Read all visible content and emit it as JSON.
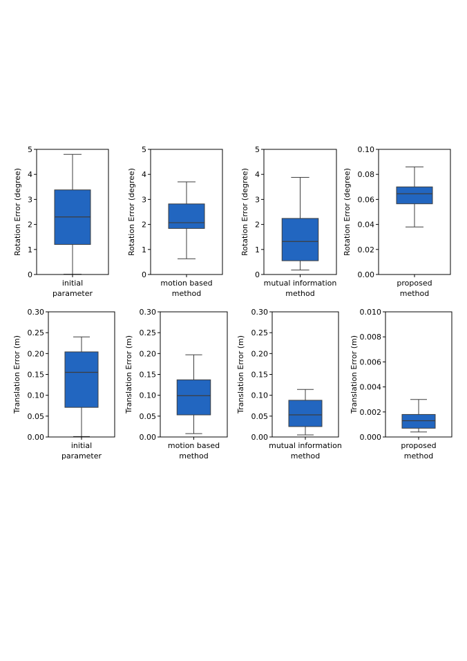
{
  "chart_data": [
    {
      "type": "box",
      "ylabel": "Rotation Error (degree)",
      "category_lines": [
        "initial",
        "parameter"
      ],
      "ylim": [
        0,
        5
      ],
      "yticks": [
        "0",
        "1",
        "2",
        "3",
        "4",
        "5"
      ],
      "box": {
        "whisker_low": 0.01,
        "q1": 1.2,
        "median": 2.3,
        "q3": 3.38,
        "whisker_high": 4.8
      },
      "color": "#2266c0"
    },
    {
      "type": "box",
      "ylabel": "Rotation Error (degree)",
      "category_lines": [
        "motion based",
        "method"
      ],
      "ylim": [
        0,
        5
      ],
      "yticks": [
        "0",
        "1",
        "2",
        "3",
        "4",
        "5"
      ],
      "box": {
        "whisker_low": 0.63,
        "q1": 1.84,
        "median": 2.07,
        "q3": 2.82,
        "whisker_high": 3.7
      },
      "color": "#2266c0"
    },
    {
      "type": "box",
      "ylabel": "Rotation Error (degree)",
      "category_lines": [
        "mutual information",
        "method"
      ],
      "ylim": [
        0,
        5
      ],
      "yticks": [
        "0",
        "1",
        "2",
        "3",
        "4",
        "5"
      ],
      "box": {
        "whisker_low": 0.18,
        "q1": 0.55,
        "median": 1.32,
        "q3": 2.24,
        "whisker_high": 3.88
      },
      "color": "#2266c0"
    },
    {
      "type": "box",
      "ylabel": "Rotation Error (degree)",
      "category_lines": [
        "proposed",
        "method"
      ],
      "ylim": [
        0,
        0.1
      ],
      "yticks": [
        "0.00",
        "0.02",
        "0.04",
        "0.06",
        "0.08",
        "0.10"
      ],
      "box": {
        "whisker_low": 0.038,
        "q1": 0.0565,
        "median": 0.0645,
        "q3": 0.07,
        "whisker_high": 0.086
      },
      "color": "#2266c0"
    },
    {
      "type": "box",
      "ylabel": "Translation Error (m)",
      "category_lines": [
        "initial",
        "parameter"
      ],
      "ylim": [
        0,
        0.3
      ],
      "yticks": [
        "0.00",
        "0.05",
        "0.10",
        "0.15",
        "0.20",
        "0.25",
        "0.30"
      ],
      "box": {
        "whisker_low": 0.001,
        "q1": 0.071,
        "median": 0.155,
        "q3": 0.204,
        "whisker_high": 0.24
      },
      "color": "#2266c0"
    },
    {
      "type": "box",
      "ylabel": "Translation Error (m)",
      "category_lines": [
        "motion based",
        "method"
      ],
      "ylim": [
        0,
        0.3
      ],
      "yticks": [
        "0.00",
        "0.05",
        "0.10",
        "0.15",
        "0.20",
        "0.25",
        "0.30"
      ],
      "box": {
        "whisker_low": 0.008,
        "q1": 0.053,
        "median": 0.099,
        "q3": 0.137,
        "whisker_high": 0.197
      },
      "color": "#2266c0"
    },
    {
      "type": "box",
      "ylabel": "Translation Error (m)",
      "category_lines": [
        "mutual information",
        "method"
      ],
      "ylim": [
        0,
        0.3
      ],
      "yticks": [
        "0.00",
        "0.05",
        "0.10",
        "0.15",
        "0.20",
        "0.25",
        "0.30"
      ],
      "box": {
        "whisker_low": 0.005,
        "q1": 0.025,
        "median": 0.053,
        "q3": 0.088,
        "whisker_high": 0.114
      },
      "color": "#2266c0"
    },
    {
      "type": "box",
      "ylabel": "Translation Error (m)",
      "category_lines": [
        "proposed",
        "method"
      ],
      "ylim": [
        0,
        0.01
      ],
      "yticks": [
        "0.000",
        "0.002",
        "0.004",
        "0.006",
        "0.008",
        "0.010"
      ],
      "box": {
        "whisker_low": 0.0004,
        "q1": 0.0007,
        "median": 0.0013,
        "q3": 0.0018,
        "whisker_high": 0.003
      },
      "color": "#2266c0"
    }
  ]
}
